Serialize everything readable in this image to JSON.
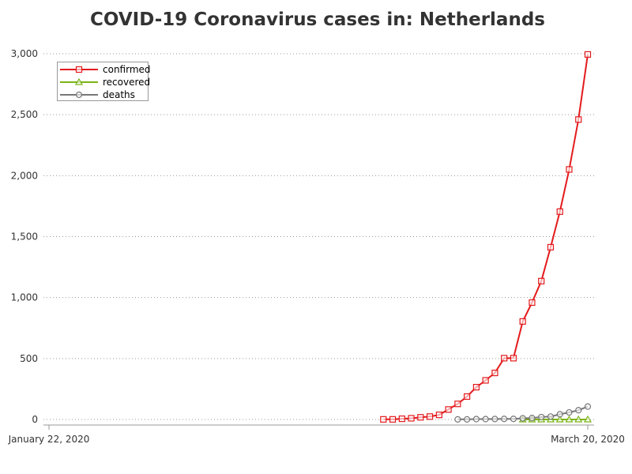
{
  "chart_data": {
    "type": "line",
    "title": "COVID-19 Coronavirus cases in: Netherlands",
    "xlabel": "",
    "ylabel": "",
    "x_start_label": "January 22, 2020",
    "x_end_label": "March 20, 2020",
    "ylim": [
      0,
      3000
    ],
    "yticks": [
      0,
      500,
      1000,
      1500,
      2000,
      2500,
      3000
    ],
    "ytick_labels": [
      "0",
      "500",
      "1,000",
      "1,500",
      "2,000",
      "2,500",
      "3,000"
    ],
    "grid": "horizontal dotted",
    "legend_placement": "top-left",
    "series": [
      {
        "name": "confirmed",
        "color": "#e31a1c",
        "marker": "square",
        "dates": [
          "2020-02-27",
          "2020-02-28",
          "2020-02-29",
          "2020-03-01",
          "2020-03-02",
          "2020-03-03",
          "2020-03-04",
          "2020-03-05",
          "2020-03-06",
          "2020-03-07",
          "2020-03-08",
          "2020-03-09",
          "2020-03-10",
          "2020-03-11",
          "2020-03-12",
          "2020-03-13",
          "2020-03-14",
          "2020-03-15",
          "2020-03-16",
          "2020-03-17",
          "2020-03-18",
          "2020-03-19",
          "2020-03-20"
        ],
        "values": [
          1,
          1,
          6,
          10,
          18,
          24,
          38,
          82,
          128,
          188,
          265,
          321,
          382,
          503,
          503,
          804,
          959,
          1135,
          1413,
          1705,
          2051,
          2460,
          2994
        ]
      },
      {
        "name": "recovered",
        "color": "#7ab317",
        "marker": "triangle",
        "dates": [
          "2020-03-13",
          "2020-03-14",
          "2020-03-15",
          "2020-03-16",
          "2020-03-17",
          "2020-03-18",
          "2020-03-19",
          "2020-03-20"
        ],
        "values": [
          0,
          0,
          0,
          0,
          0,
          0,
          0,
          0
        ]
      },
      {
        "name": "deaths",
        "color": "#777777",
        "marker": "circle",
        "dates": [
          "2020-03-06",
          "2020-03-07",
          "2020-03-08",
          "2020-03-09",
          "2020-03-10",
          "2020-03-11",
          "2020-03-12",
          "2020-03-13",
          "2020-03-14",
          "2020-03-15",
          "2020-03-16",
          "2020-03-17",
          "2020-03-18",
          "2020-03-19",
          "2020-03-20"
        ],
        "values": [
          1,
          1,
          3,
          3,
          4,
          5,
          5,
          10,
          12,
          20,
          24,
          43,
          58,
          76,
          106
        ]
      }
    ]
  }
}
